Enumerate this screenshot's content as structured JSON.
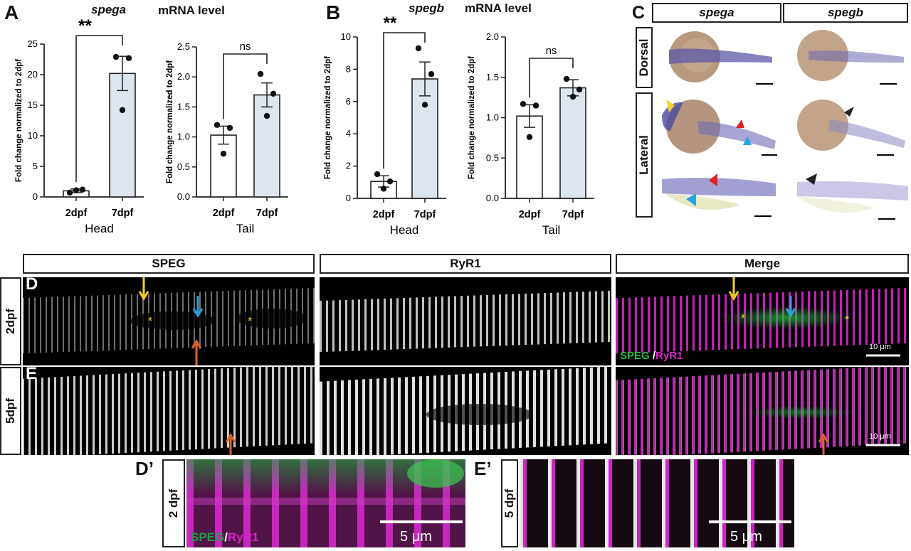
{
  "panels": {
    "A": "A",
    "B": "B",
    "C": "C",
    "D": "D",
    "E": "E",
    "Dp": "D’",
    "Ep": "E’"
  },
  "titles": {
    "spega_gene": "spega",
    "spegb_gene": "spegb",
    "mrna": "mRNA level"
  },
  "ylabel": "Fold change normalized to 2dpf",
  "stat": {
    "sig": "**",
    "ns": "ns"
  },
  "groups": {
    "head": "Head",
    "tail": "Tail"
  },
  "insitu": {
    "col1": "spega",
    "col2": "spegb",
    "row1": "Dorsal",
    "row2": "Lateral"
  },
  "micro": {
    "col_speg": "SPEG",
    "col_ryr1": "RyR1",
    "col_merge": "Merge",
    "row_2dpf": "2dpf",
    "row_5dpf": "5dpf",
    "legend_speg": "SPEG",
    "legend_slash": " /",
    "legend_ryr1": "RyR1",
    "scale": "10 μm",
    "inset_2dpf": "2 dpf",
    "inset_5dpf": "5 dpf",
    "inset_speg": "SPEG",
    "inset_slash": "/",
    "inset_ryr1": "RyR1",
    "inset_scale": "5 μm",
    "star": "*"
  },
  "colors": {
    "bar_fill_7dpf": "#dde6ee",
    "yellow_arrow": "#f2d22a",
    "blue_arrow": "#2aa4e0",
    "orange_arrow": "#e0622a",
    "red_arrowhead": "#e02020",
    "green": "#20c040",
    "magenta": "#e020d0"
  },
  "chart_data": [
    {
      "type": "bar",
      "title": "spega mRNA level",
      "group": "Head",
      "categories": [
        "2dpf",
        "7dpf"
      ],
      "values": [
        1.0,
        20.2
      ],
      "errors": [
        0.3,
        2.8
      ],
      "points": [
        [
          0.7,
          1.2,
          1.1
        ],
        [
          22.9,
          22.7,
          14.2
        ]
      ],
      "ylabel": "Fold change normalized to 2dpf",
      "ylim": [
        0,
        25
      ],
      "yticks": [
        0,
        5,
        10,
        15,
        20,
        25
      ],
      "significance": "**"
    },
    {
      "type": "bar",
      "title": "spega mRNA level",
      "group": "Tail",
      "categories": [
        "2dpf",
        "7dpf"
      ],
      "values": [
        1.03,
        1.7
      ],
      "errors": [
        0.15,
        0.2
      ],
      "points": [
        [
          1.2,
          1.15,
          0.72
        ],
        [
          2.05,
          1.72,
          1.35
        ]
      ],
      "ylabel": "Fold change normalized to 2dpf",
      "ylim": [
        0,
        2.5
      ],
      "yticks": [
        0.0,
        0.5,
        1.0,
        1.5,
        2.0,
        2.5
      ],
      "significance": "ns"
    },
    {
      "type": "bar",
      "title": "spegb mRNA level",
      "group": "Head",
      "categories": [
        "2dpf",
        "7dpf"
      ],
      "values": [
        1.05,
        7.4
      ],
      "errors": [
        0.35,
        1.05
      ],
      "points": [
        [
          1.5,
          1.05,
          0.6
        ],
        [
          9.3,
          7.7,
          5.8
        ]
      ],
      "ylabel": "Fold change normalized to 2dpf",
      "ylim": [
        0,
        10
      ],
      "yticks": [
        0,
        2,
        4,
        6,
        8,
        10
      ],
      "significance": "**"
    },
    {
      "type": "bar",
      "title": "spegb mRNA level",
      "group": "Tail",
      "categories": [
        "2dpf",
        "7dpf"
      ],
      "values": [
        1.02,
        1.37
      ],
      "errors": [
        0.14,
        0.1
      ],
      "points": [
        [
          1.17,
          1.15,
          0.76
        ],
        [
          1.48,
          1.35,
          1.26
        ]
      ],
      "ylabel": "Fold change normalized to 2dpf",
      "ylim": [
        0,
        2.0
      ],
      "yticks": [
        0.0,
        0.5,
        1.0,
        1.5,
        2.0
      ],
      "significance": "ns"
    }
  ]
}
